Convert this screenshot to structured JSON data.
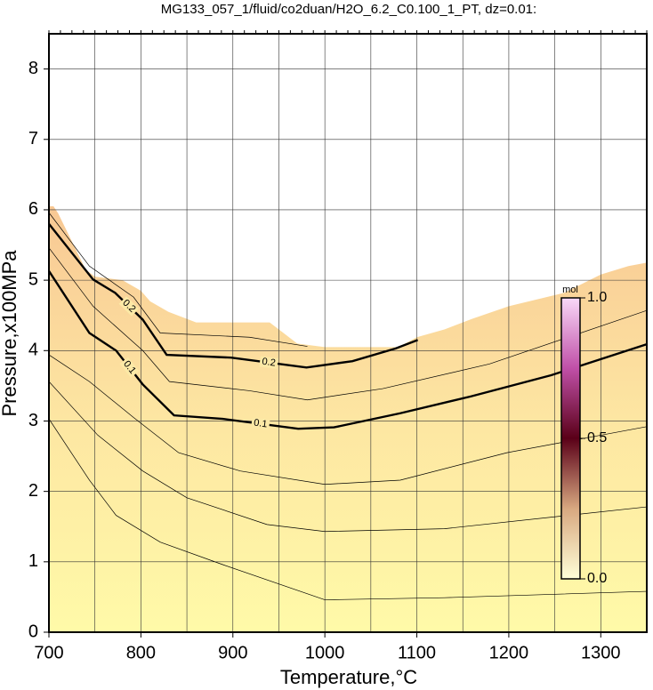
{
  "chart_data": {
    "type": "contour",
    "title": "MG133_057_1/fluid/co2duan/H2O_6.2_C0.100_1_PT, dz=0.01:",
    "xlabel": "Temperature,°C",
    "ylabel": "Pressure,x100MPa",
    "xlim": [
      700,
      1350
    ],
    "ylim": [
      0,
      8.5
    ],
    "xticks": [
      700,
      800,
      900,
      1000,
      1100,
      1200,
      1300
    ],
    "xminor": [
      750,
      850,
      950,
      1050,
      1150,
      1250,
      1350
    ],
    "yticks": [
      0,
      1,
      2,
      3,
      4,
      5,
      6,
      7,
      8
    ],
    "grid": true,
    "field": {
      "colors": [
        "#fffaa8",
        "#fde6a2",
        "#f8c894"
      ],
      "x": [
        700,
        705,
        710,
        740,
        750,
        780,
        800,
        810,
        830,
        850,
        860,
        940,
        950,
        970,
        1000,
        1080,
        1100,
        1130,
        1160,
        1200,
        1260,
        1300,
        1330,
        1350
      ],
      "y": [
        6.05,
        6.05,
        5.95,
        5.15,
        5.05,
        5.0,
        4.85,
        4.7,
        4.55,
        4.45,
        4.4,
        4.4,
        4.3,
        4.1,
        4.05,
        4.05,
        4.19,
        4.3,
        4.45,
        4.63,
        4.82,
        5.08,
        5.2,
        5.25
      ]
    },
    "series": [
      {
        "name": "0.2",
        "color": "#000000",
        "width": 2.4,
        "x": [
          700,
          748,
          772,
          802,
          828,
          898,
          980,
          1030,
          1077,
          1101
        ],
        "y": [
          5.8,
          5.01,
          4.82,
          4.44,
          3.94,
          3.9,
          3.76,
          3.85,
          4.03,
          4.15
        ]
      },
      {
        "name": "0.1",
        "color": "#000000",
        "width": 2.4,
        "x": [
          700,
          744,
          773,
          802,
          836,
          889,
          971,
          1010,
          1082,
          1159,
          1246,
          1350
        ],
        "y": [
          5.13,
          4.25,
          4.0,
          3.52,
          3.08,
          3.03,
          2.89,
          2.91,
          3.11,
          3.35,
          3.65,
          4.09
        ]
      },
      {
        "color": "#000000",
        "width": 0.7,
        "x": [
          700,
          748,
          802,
          831,
          918,
          981,
          1063,
          1179,
          1350
        ],
        "y": [
          5.46,
          4.63,
          4.0,
          3.56,
          3.43,
          3.3,
          3.46,
          3.81,
          4.57
        ]
      },
      {
        "color": "#000000",
        "width": 0.7,
        "x": [
          700,
          744,
          792,
          821,
          918,
          981
        ],
        "y": [
          5.96,
          5.2,
          4.76,
          4.25,
          4.19,
          4.06
        ]
      },
      {
        "color": "#000000",
        "width": 0.7,
        "x": [
          700,
          744,
          792,
          841,
          908,
          1000,
          1082,
          1198,
          1350
        ],
        "y": [
          3.94,
          3.56,
          3.05,
          2.55,
          2.29,
          2.1,
          2.16,
          2.55,
          2.92
        ]
      },
      {
        "color": "#000000",
        "width": 0.7,
        "x": [
          700,
          753,
          802,
          850,
          937,
          1000,
          1130,
          1350
        ],
        "y": [
          3.56,
          2.8,
          2.29,
          1.91,
          1.53,
          1.43,
          1.47,
          1.78
        ]
      },
      {
        "color": "#000000",
        "width": 0.7,
        "x": [
          700,
          744,
          773,
          821,
          889,
          1000,
          1130,
          1350
        ],
        "y": [
          3.03,
          2.16,
          1.66,
          1.28,
          0.96,
          0.46,
          0.49,
          0.58
        ]
      }
    ],
    "colorbar": {
      "label": "mol",
      "lim": [
        0,
        1
      ],
      "colors": [
        "#ffffd8",
        "#d8a880",
        "#5a0018",
        "#c050a8",
        "#f8d8f8"
      ],
      "ticks": [
        {
          "value": 0,
          "label": "0.0"
        },
        {
          "value": 0.5,
          "label": "0.5"
        },
        {
          "value": 1,
          "label": "1.0"
        }
      ]
    }
  }
}
